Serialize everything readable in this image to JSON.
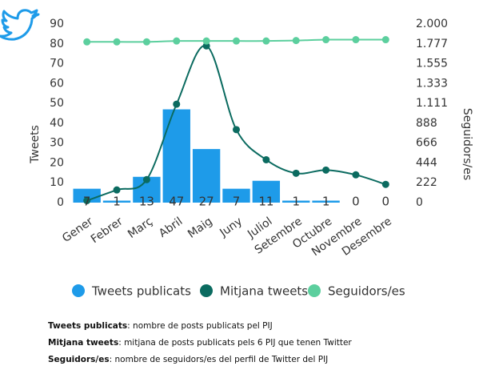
{
  "chart_data": {
    "type": "bar_line",
    "categories": [
      "Gener",
      "Febrer",
      "Març",
      "Abril",
      "Maig",
      "Juny",
      "Juliol",
      "Setembre",
      "Octubre",
      "Novembre",
      "Desembre"
    ],
    "ylabel": "Tweets",
    "y2label": "Seguidors/es",
    "ylim": [
      0,
      90
    ],
    "yticks": [
      0,
      10,
      20,
      30,
      40,
      50,
      60,
      70,
      80,
      90
    ],
    "y2lim": [
      0,
      2000
    ],
    "y2ticks": [
      0,
      222,
      444,
      666,
      888,
      {
        "value": 1111,
        "label": "1.111"
      },
      {
        "value": 1333,
        "label": "1.333"
      },
      {
        "value": 1555,
        "label": "1.555"
      },
      {
        "value": 1777,
        "label": "1.777"
      },
      {
        "value": 2000,
        "label": "2.000"
      }
    ],
    "series": [
      {
        "name": "Tweets publicats",
        "color": "#1e9be9",
        "kind": "bar",
        "values": [
          7,
          1,
          13,
          47,
          27,
          7,
          11,
          1,
          1,
          0,
          0
        ]
      },
      {
        "name": "Mitjana tweets",
        "color": "#0b6b60",
        "kind": "line",
        "values": [
          1,
          6.4,
          11.6,
          49.6,
          79,
          36.8,
          21.6,
          14.8,
          16.4,
          14,
          9.2
        ]
      },
      {
        "name": "Seguidors/es",
        "color": "#5ccf9e",
        "kind": "line",
        "axis": "y2",
        "values": [
          1800,
          1800,
          1800,
          1810,
          1810,
          1810,
          1810,
          1815,
          1825,
          1825,
          1825
        ]
      }
    ],
    "notes": [
      {
        "term": "Tweets publicats",
        "text": ": nombre de posts publicats pel PIJ"
      },
      {
        "term": "Mitjana tweets",
        "text": ": mitjana de posts publicats pels 6 PIJ que tenen Twitter"
      },
      {
        "term": "Seguidors/es",
        "text": ": nombre de seguidors/es del perfil de Twitter del PIJ"
      }
    ]
  }
}
